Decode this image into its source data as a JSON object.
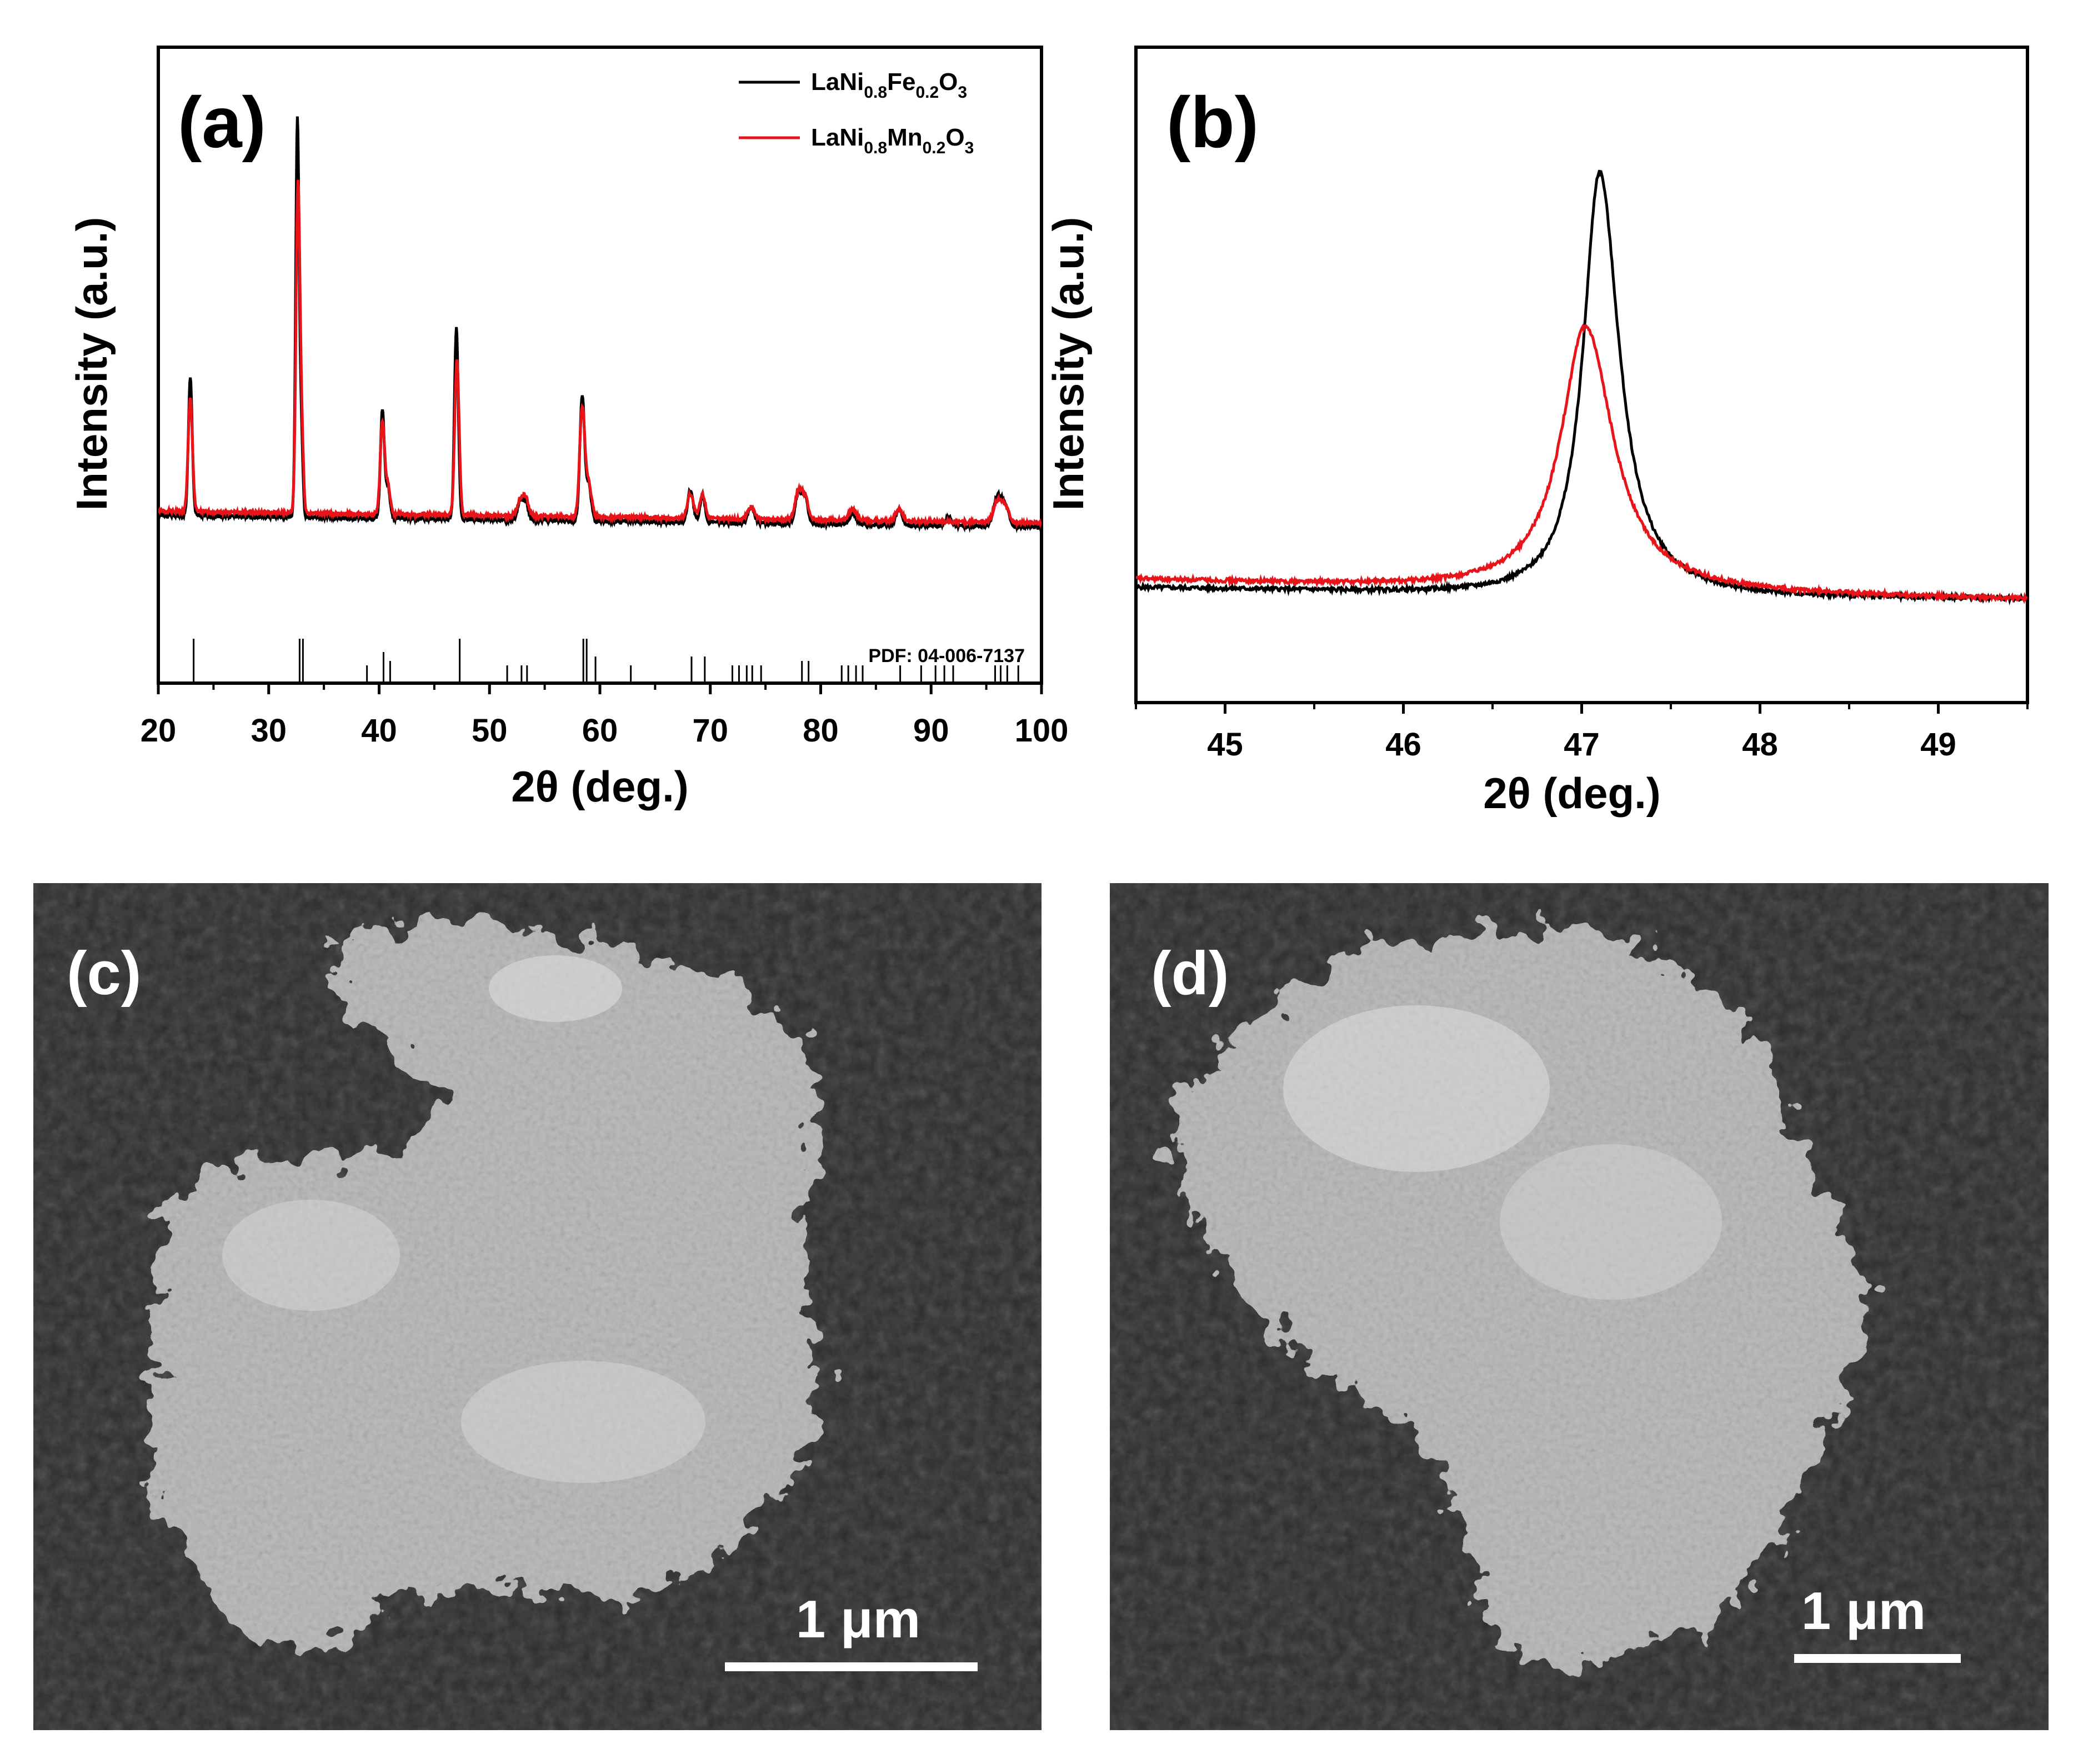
{
  "chart_data": [
    {
      "panel": "(a)",
      "type": "line",
      "title": "",
      "xlabel": "2θ (deg.)",
      "ylabel": "Intensity (a.u.)",
      "xlim": [
        20,
        100
      ],
      "xticks": [
        "20",
        "30",
        "40",
        "50",
        "60",
        "70",
        "80",
        "90",
        "100"
      ],
      "ylim": [
        0,
        100
      ],
      "grid": false,
      "legend_position": "top-right",
      "series": [
        {
          "name": "LaNi0.8Fe0.2O3",
          "legend_parts": [
            [
              "LaNi",
              ""
            ],
            [
              "0.8",
              "sub"
            ],
            [
              "Fe",
              ""
            ],
            [
              "0.2",
              "sub"
            ],
            [
              "O",
              ""
            ],
            [
              "3",
              "sub"
            ]
          ],
          "color": "#000000",
          "baseline": 14,
          "peaks": [
            [
              22.9,
              34,
              0.25
            ],
            [
              32.6,
              98,
              0.22
            ],
            [
              32.95,
              20,
              0.2
            ],
            [
              40.3,
              27,
              0.25
            ],
            [
              40.8,
              8,
              0.25
            ],
            [
              47.0,
              47,
              0.25
            ],
            [
              52.8,
              5,
              0.35
            ],
            [
              53.3,
              4,
              0.3
            ],
            [
              58.4,
              31,
              0.3
            ],
            [
              59.0,
              9,
              0.3
            ],
            [
              68.2,
              8,
              0.35
            ],
            [
              69.3,
              7,
              0.3
            ],
            [
              73.7,
              4,
              0.4
            ],
            [
              78.0,
              8,
              0.4
            ],
            [
              78.6,
              6,
              0.35
            ],
            [
              82.9,
              3,
              0.4
            ],
            [
              87.1,
              4,
              0.4
            ],
            [
              91.6,
              2,
              0.4
            ],
            [
              96.0,
              7,
              0.5
            ],
            [
              96.7,
              5,
              0.5
            ]
          ]
        },
        {
          "name": "LaNi0.8Mn0.2O3",
          "legend_parts": [
            [
              "LaNi",
              ""
            ],
            [
              "0.8",
              "sub"
            ],
            [
              "Mn",
              ""
            ],
            [
              "0.2",
              "sub"
            ],
            [
              "O",
              ""
            ],
            [
              "3",
              "sub"
            ]
          ],
          "color": "#e8141a",
          "baseline": 15,
          "peaks": [
            [
              22.9,
              28,
              0.28
            ],
            [
              32.65,
              81,
              0.25
            ],
            [
              33.0,
              17,
              0.22
            ],
            [
              40.3,
              23,
              0.28
            ],
            [
              40.8,
              7,
              0.28
            ],
            [
              47.05,
              38,
              0.28
            ],
            [
              52.8,
              4,
              0.4
            ],
            [
              53.3,
              4,
              0.35
            ],
            [
              58.4,
              27,
              0.33
            ],
            [
              59.0,
              8,
              0.35
            ],
            [
              68.2,
              6,
              0.4
            ],
            [
              69.3,
              6,
              0.35
            ],
            [
              73.7,
              3,
              0.45
            ],
            [
              78.0,
              7,
              0.45
            ],
            [
              78.6,
              5,
              0.4
            ],
            [
              82.9,
              3,
              0.45
            ],
            [
              87.1,
              3,
              0.45
            ],
            [
              96.0,
              5,
              0.5
            ],
            [
              96.7,
              4,
              0.5
            ]
          ]
        }
      ],
      "reference": {
        "label": "PDF: 04-006-7137",
        "positions": [
          23.2,
          32.8,
          33.1,
          38.9,
          40.4,
          41.0,
          47.3,
          51.6,
          52.9,
          53.4,
          58.5,
          58.8,
          59.6,
          62.8,
          68.3,
          69.5,
          72.0,
          72.6,
          73.3,
          73.8,
          74.6,
          78.3,
          78.9,
          81.9,
          82.5,
          83.2,
          83.8,
          87.2,
          89.1,
          90.4,
          91.2,
          92.0,
          95.8,
          96.3,
          96.9,
          97.9
        ],
        "heights": [
          100,
          100,
          100,
          40,
          70,
          50,
          100,
          40,
          40,
          40,
          100,
          100,
          60,
          40,
          60,
          60,
          40,
          40,
          40,
          40,
          40,
          50,
          50,
          40,
          40,
          40,
          40,
          40,
          40,
          40,
          40,
          40,
          40,
          40,
          40,
          40
        ]
      }
    },
    {
      "panel": "(b)",
      "type": "line",
      "title": "",
      "xlabel": "2θ (deg.)",
      "ylabel": "Intensity (a.u.)",
      "xlim": [
        44.5,
        49.5
      ],
      "xticks": [
        "45",
        "46",
        "47",
        "48",
        "49"
      ],
      "ylim": [
        0,
        100
      ],
      "grid": false,
      "series": [
        {
          "name": "LaNi0.8Fe0.2O3",
          "color": "#000000",
          "baseline": [
            11.5,
            9.5
          ],
          "peak_center": 47.1,
          "peak_height": 74,
          "peak_width": [
            0.14,
            0.17
          ]
        },
        {
          "name": "LaNi0.8Mn0.2O3",
          "color": "#e8141a",
          "baseline": [
            13.0,
            9.5
          ],
          "peak_center": 47.02,
          "peak_height": 46,
          "peak_width": [
            0.21,
            0.24
          ]
        }
      ]
    }
  ],
  "sem_panels": [
    {
      "label": "(c)",
      "scale_bar": "1 μm"
    },
    {
      "label": "(d)",
      "scale_bar": "1 μm"
    }
  ]
}
